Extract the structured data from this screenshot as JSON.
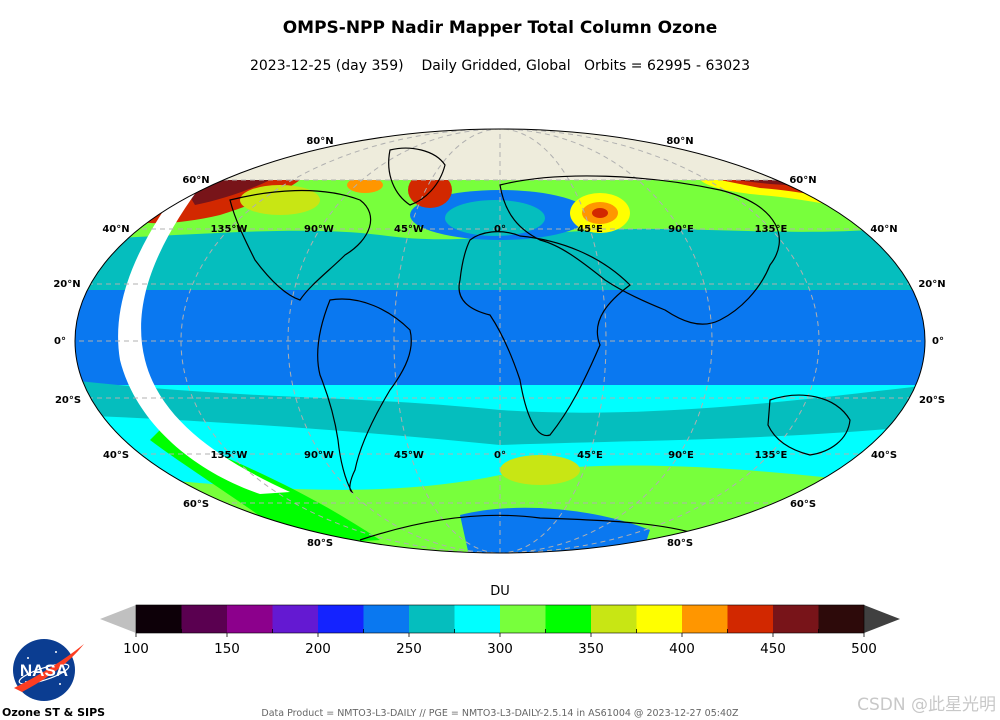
{
  "header": {
    "title": "OMPS-NPP Nadir Mapper Total Column Ozone",
    "subtitle": "2023-12-25 (day 359)    Daily Gridded, Global   Orbits = 62995 - 63023"
  },
  "map": {
    "projection": "mollweide",
    "latitude_labels_left": [
      "80°N",
      "60°N",
      "40°N",
      "20°N",
      "0°",
      "20°S",
      "40°S",
      "60°S",
      "80°S"
    ],
    "latitude_labels_right": [
      "80°N",
      "60°N",
      "40°N",
      "20°N",
      "0°",
      "20°S",
      "40°S",
      "60°S",
      "80°S"
    ],
    "longitude_labels_north": [
      "135°W",
      "90°W",
      "45°W",
      "0°",
      "45°E",
      "90°E",
      "135°E"
    ],
    "longitude_labels_south": [
      "135°W",
      "90°W",
      "45°W",
      "0°",
      "45°E",
      "90°E",
      "135°E"
    ],
    "colors": {
      "no_data_polar": "#eeecdc",
      "gap": "#ffffff",
      "graticule": "#b0b0b0"
    }
  },
  "colorbar": {
    "label": "DU",
    "ticks": [
      "100",
      "150",
      "200",
      "250",
      "300",
      "350",
      "400",
      "450",
      "500"
    ],
    "under_color": "#c0c0c0",
    "over_color": "#404040",
    "colors": [
      "#0d0008",
      "#5a0050",
      "#8c008c",
      "#6419d2",
      "#1423ff",
      "#0a78f0",
      "#05bebe",
      "#00ffff",
      "#78ff3c",
      "#00ff00",
      "#c8e614",
      "#ffff00",
      "#ff9600",
      "#d22800",
      "#781419",
      "#2d0a0a"
    ]
  },
  "footer": {
    "org": "Ozone ST & SIPS",
    "logo_text": "NASA",
    "data_product": "Data Product = NMTO3-L3-DAILY // PGE = NMTO3-L3-DAILY-2.5.14 in AS61004 @ 2023-12-27 05:40Z",
    "watermark": "CSDN @此星光明"
  }
}
